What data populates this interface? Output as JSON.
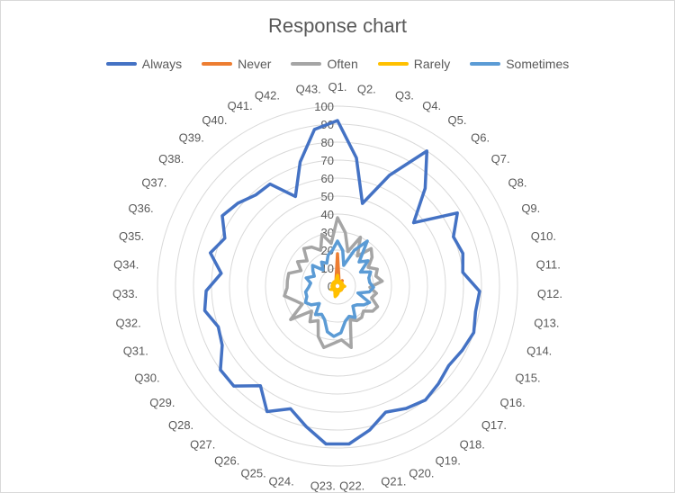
{
  "chart_data": {
    "type": "radar",
    "title": "Response chart",
    "categories": [
      "Q1.",
      "Q2.",
      "Q3.",
      "Q4.",
      "Q5.",
      "Q6.",
      "Q7.",
      "Q8.",
      "Q9.",
      "Q10.",
      "Q11.",
      "Q12.",
      "Q13.",
      "Q14.",
      "Q15.",
      "Q16.",
      "Q17.",
      "Q18.",
      "Q19.",
      "Q20.",
      "Q21.",
      "Q22.",
      "Q23.",
      "Q24.",
      "Q25.",
      "Q26.",
      "Q27.",
      "Q28.",
      "Q29.",
      "Q30.",
      "Q31.",
      "Q32.",
      "Q33.",
      "Q34.",
      "Q35.",
      "Q36.",
      "Q37.",
      "Q38.",
      "Q39.",
      "Q40.",
      "Q41.",
      "Q42.",
      "Q43."
    ],
    "r_ticks": [
      "0",
      "10",
      "20",
      "30",
      "40",
      "50",
      "60",
      "70",
      "80",
      "90",
      "100"
    ],
    "r_range": [
      0,
      100
    ],
    "legend_position": "top",
    "series": [
      {
        "name": "Always",
        "color": "#4472C4",
        "values": [
          92,
          72,
          48,
          68,
          90,
          73,
          55,
          78,
          70,
          72,
          70,
          79,
          78,
          80,
          78,
          76,
          78,
          80,
          78,
          75,
          82,
          88,
          88,
          80,
          73,
          80,
          70,
          80,
          80,
          72,
          70,
          75,
          73,
          65,
          73,
          68,
          75,
          72,
          68,
          68,
          55,
          72,
          88
        ]
      },
      {
        "name": "Never",
        "color": "#ED7D31",
        "values": [
          18,
          5,
          3,
          2,
          2,
          4,
          2,
          2,
          3,
          2,
          2,
          3,
          2,
          2,
          3,
          2,
          3,
          2,
          2,
          3,
          2,
          3,
          3,
          3,
          2,
          2,
          3,
          2,
          2,
          3,
          2,
          2,
          3,
          2,
          2,
          2,
          3,
          2,
          2,
          3,
          2,
          3,
          5
        ]
      },
      {
        "name": "Often",
        "color": "#A5A5A5",
        "values": [
          38,
          30,
          20,
          30,
          20,
          28,
          25,
          20,
          24,
          22,
          25,
          18,
          22,
          20,
          25,
          24,
          20,
          22,
          22,
          20,
          35,
          30,
          32,
          35,
          30,
          22,
          25,
          20,
          32,
          22,
          25,
          30,
          28,
          28,
          28,
          22,
          26,
          22,
          28,
          26,
          22,
          30,
          24
        ]
      },
      {
        "name": "Rarely",
        "color": "#FFC000",
        "values": [
          6,
          3,
          2,
          2,
          3,
          2,
          3,
          2,
          3,
          2,
          3,
          4,
          3,
          2,
          3,
          2,
          2,
          3,
          2,
          3,
          2,
          4,
          5,
          6,
          4,
          2,
          3,
          2,
          3,
          4,
          2,
          3,
          2,
          3,
          3,
          2,
          3,
          2,
          3,
          2,
          3,
          3,
          4
        ]
      },
      {
        "name": "Sometimes",
        "color": "#5B9BD5",
        "values": [
          25,
          20,
          12,
          22,
          30,
          18,
          22,
          15,
          20,
          18,
          18,
          20,
          18,
          12,
          20,
          18,
          15,
          14,
          20,
          18,
          20,
          26,
          28,
          26,
          20,
          18,
          20,
          14,
          18,
          20,
          18,
          18,
          16,
          15,
          18,
          14,
          16,
          18,
          12,
          16,
          14,
          18,
          20
        ]
      }
    ]
  }
}
